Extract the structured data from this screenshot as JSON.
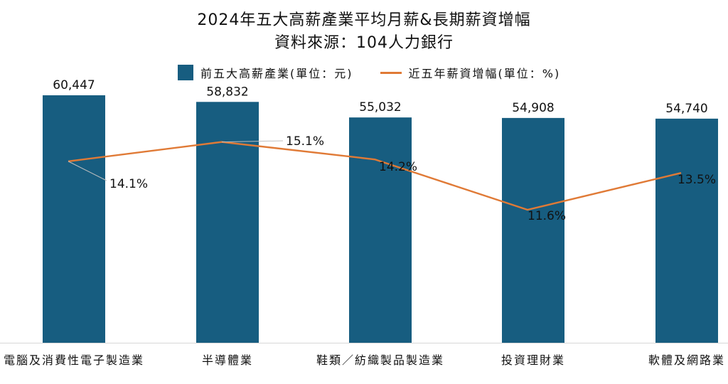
{
  "chart_data": {
    "type": "bar",
    "title": "2024年五大高薪產業平均月薪&長期薪資增幅",
    "subtitle": "資料來源：104人力銀行",
    "categories": [
      "電腦及消費性電子製造業",
      "半導體業",
      "鞋類／紡織製品製造業",
      "投資理財業",
      "軟體及網路業"
    ],
    "series": [
      {
        "name": "前五大高薪產業(單位：元)",
        "type": "bar",
        "values": [
          60447,
          58832,
          55032,
          54908,
          54740
        ],
        "labels": [
          "60,447",
          "58,832",
          "55,032",
          "54,908",
          "54,740"
        ],
        "color": "#175d80"
      },
      {
        "name": "近五年薪資增幅(單位：%)",
        "type": "line",
        "values": [
          14.1,
          15.1,
          14.2,
          11.6,
          13.5
        ],
        "labels": [
          "14.1%",
          "15.1%",
          "14.2%",
          "11.6%",
          "13.5%"
        ],
        "color": "#e07a36"
      }
    ],
    "legend_position": "top",
    "grid": false
  }
}
